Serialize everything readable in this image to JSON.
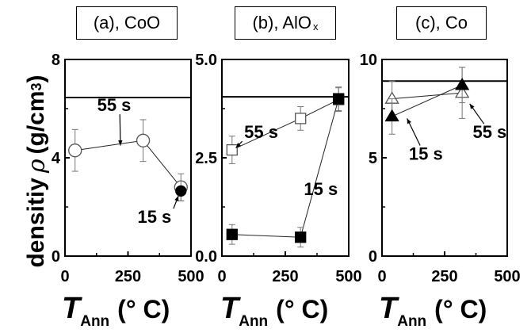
{
  "y_axis_label": {
    "prefix": "densitiy",
    "symbol": "ρ",
    "unit": "(g/cm",
    "unit_exp": "3",
    "unit_close": ")"
  },
  "x_axis_label": {
    "symbol": "T",
    "subscript": "Ann",
    "unit": "(° C)"
  },
  "chart_data": [
    {
      "type": "scatter",
      "title": "(a), CoO",
      "xlim": [
        0,
        500
      ],
      "ylim": [
        0,
        8
      ],
      "xticks": [
        "0",
        "250",
        "500"
      ],
      "yticks": [
        "0",
        "4",
        "8"
      ],
      "ytick_values": [
        0,
        4,
        8
      ],
      "reference_line": 6.45,
      "series": [
        {
          "name": "55 s",
          "marker": "circle",
          "filled": false,
          "x": [
            40,
            310,
            460
          ],
          "y": [
            4.3,
            4.7,
            2.8
          ],
          "err": [
            0.85,
            0.85,
            0.55
          ]
        },
        {
          "name": "15 s",
          "marker": "circle",
          "filled": true,
          "x": [
            460
          ],
          "y": [
            2.65
          ],
          "err": [
            0.4
          ]
        }
      ],
      "annotations": [
        {
          "text": "55 s",
          "x": 195,
          "y": 5.9,
          "arrow_to": [
            220,
            4.5
          ]
        },
        {
          "text": "15 s",
          "x": 355,
          "y": 1.35,
          "arrow_to": [
            450,
            2.45
          ]
        }
      ]
    },
    {
      "type": "scatter",
      "title": "(b), AlO",
      "title_sub": "x",
      "xlim": [
        0,
        500
      ],
      "ylim": [
        0,
        5
      ],
      "xticks": [
        "0",
        "250",
        "500"
      ],
      "yticks": [
        "0.0",
        "2.5",
        "5.0"
      ],
      "ytick_values": [
        0,
        2.5,
        5
      ],
      "reference_line": 4.05,
      "series": [
        {
          "name": "55 s",
          "marker": "square",
          "filled": false,
          "x": [
            40,
            310,
            460
          ],
          "y": [
            2.7,
            3.5,
            3.98
          ],
          "err": [
            0.35,
            0.3,
            0.3
          ]
        },
        {
          "name": "15 s",
          "marker": "square",
          "filled": true,
          "x": [
            40,
            310,
            460
          ],
          "y": [
            0.55,
            0.48,
            4.0
          ],
          "err": [
            0.25,
            0.25,
            0.3
          ]
        }
      ],
      "annotations": [
        {
          "text": "55 s",
          "x": 155,
          "y": 3.0,
          "arrow_to": [
            55,
            2.75
          ]
        },
        {
          "text": "15 s",
          "x": 390,
          "y": 1.55,
          "arrow_to": null
        }
      ]
    },
    {
      "type": "scatter",
      "title": "(c), Co",
      "xlim": [
        0,
        500
      ],
      "ylim": [
        0,
        10
      ],
      "xticks": [
        "0",
        "250",
        "500"
      ],
      "yticks": [
        "0",
        "5",
        "10"
      ],
      "ytick_values": [
        0,
        5,
        10
      ],
      "reference_line": 8.9,
      "series": [
        {
          "name": "55 s",
          "marker": "triangle",
          "filled": false,
          "x": [
            40,
            320
          ],
          "y": [
            8.0,
            8.3
          ],
          "err": [
            0.9,
            1.3
          ]
        },
        {
          "name": "15 s",
          "marker": "triangle",
          "filled": true,
          "x": [
            40,
            320
          ],
          "y": [
            7.1,
            8.7
          ],
          "err": [
            0.9,
            0.9
          ]
        }
      ],
      "annotations": [
        {
          "text": "15 s",
          "x": 175,
          "y": 4.9,
          "arrow_to": [
            100,
            7.0
          ]
        },
        {
          "text": "55 s",
          "x": 430,
          "y": 6.0,
          "arrow_to": [
            350,
            7.75
          ]
        }
      ]
    }
  ]
}
